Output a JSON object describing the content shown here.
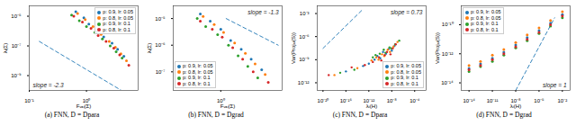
{
  "chart_data": [
    {
      "type": "scatter",
      "caption": "(a) FNN, D = Dpara",
      "xlabel": "Fᵥₐₗ(Σ)",
      "ylabel": "λᵢ(Σ)",
      "log": true,
      "grid": false,
      "legend": "upper right",
      "marker": "circle",
      "xlim": [
        0.1,
        8
      ],
      "ylim": [
        1e-10,
        5e-05
      ],
      "xticks": [
        {
          "value": 0.1,
          "label": "10⁻¹"
        },
        {
          "value": 1,
          "label": "10⁰"
        }
      ],
      "yticks": [
        {
          "value": 1e-09,
          "label": "10⁻⁹"
        },
        {
          "value": 1e-07,
          "label": "10⁻⁷"
        },
        {
          "value": 1e-05,
          "label": "10⁻⁵"
        }
      ],
      "series": [
        {
          "name": "p: 0.9, lr: 0.05",
          "color": "#1f77b4",
          "x": [
            0.65,
            0.9,
            1.1,
            1.5,
            2,
            2.8,
            3.5,
            4.5
          ],
          "values": [
            2e-05,
            8e-06,
            3e-06,
            9e-07,
            4e-07,
            1.5e-07,
            6e-08,
            2e-08
          ]
        },
        {
          "name": "p: 0.8, lr: 0.05",
          "color": "#ff7f0e",
          "x": [
            0.7,
            0.95,
            1.3,
            1.8,
            2.5,
            3.2,
            4,
            5
          ],
          "values": [
            1.5e-05,
            6e-06,
            2e-06,
            6e-07,
            2e-07,
            8e-08,
            3e-08,
            1e-08
          ]
        },
        {
          "name": "p: 0.9, lr: 0.1",
          "color": "#2ca02c",
          "x": [
            0.55,
            0.75,
            1,
            1.4,
            1.9,
            2.6,
            3.3,
            4.2
          ],
          "values": [
            1.2e-05,
            5e-06,
            2e-06,
            8e-07,
            3e-07,
            1e-07,
            4e-08,
            1.5e-08
          ]
        },
        {
          "name": "p: 0.8, lr: 0.1",
          "color": "#d62728",
          "x": [
            0.6,
            0.85,
            1.2,
            1.6,
            2.2,
            3,
            3.8,
            5.5
          ],
          "values": [
            1e-05,
            4e-06,
            1.5e-06,
            5e-07,
            2e-07,
            7e-08,
            2.5e-08,
            5e-09
          ]
        }
      ],
      "annotations": [
        {
          "text": "slope = -2.3",
          "x": [
            0.15,
            4
          ],
          "values": [
            2e-07,
            1.05e-10
          ],
          "color": "#1f77b4",
          "line_style": "dashed"
        }
      ]
    },
    {
      "type": "scatter",
      "caption": "(b) FNN, D = Dgrad",
      "xlabel": "Fᵥₐₗ(Σ)",
      "ylabel": "λᵢ(Σ)",
      "log": true,
      "grid": false,
      "legend": "lower left",
      "marker": "circle",
      "xlim": [
        0.2,
        8
      ],
      "ylim": [
        2e-08,
        3e-05
      ],
      "xticks": [
        {
          "value": 1,
          "label": "10⁰"
        }
      ],
      "yticks": [
        {
          "value": 1e-07,
          "label": "10⁻⁷"
        },
        {
          "value": 1e-06,
          "label": "10⁻⁶"
        },
        {
          "value": 1e-05,
          "label": "10⁻⁵"
        }
      ],
      "series": [
        {
          "name": "p: 0.9, lr: 0.05",
          "color": "#1f77b4",
          "x": [
            0.5,
            0.7,
            1,
            1.4,
            2,
            2.8,
            4
          ],
          "values": [
            1.5e-05,
            8e-06,
            4e-06,
            1.5e-06,
            7e-07,
            3e-07,
            1.2e-07
          ]
        },
        {
          "name": "p: 0.8, lr: 0.05",
          "color": "#ff7f0e",
          "x": [
            0.55,
            0.8,
            1.1,
            1.6,
            2.3,
            3.2,
            4.5
          ],
          "values": [
            1.2e-05,
            6e-06,
            3e-06,
            1.2e-06,
            5e-07,
            2e-07,
            8e-08
          ]
        },
        {
          "name": "p: 0.9, lr: 0.1",
          "color": "#2ca02c",
          "x": [
            0.45,
            0.6,
            0.9,
            1.3,
            1.8,
            2.5,
            3.5
          ],
          "values": [
            1e-05,
            5e-06,
            2.5e-06,
            1e-06,
            4e-07,
            1.6e-07,
            6e-08
          ]
        },
        {
          "name": "p: 0.8, lr: 0.1",
          "color": "#d62728",
          "x": [
            0.5,
            0.75,
            1.05,
            1.5,
            2.1,
            3,
            5
          ],
          "values": [
            8e-06,
            4e-06,
            2e-06,
            8e-07,
            3e-07,
            1e-07,
            4e-08
          ]
        }
      ],
      "annotations": [
        {
          "text": "slope = -1.3",
          "x": [
            1.2,
            7
          ],
          "values": [
            1e-05,
            1e-06
          ],
          "color": "#1f77b4",
          "line_style": "dashed"
        }
      ]
    },
    {
      "type": "scatter",
      "caption": "(c) FNN, D = Dpara",
      "xlabel": "λᵢ(H)",
      "ylabel": "Var(Projᵤᵢ(S))",
      "log": true,
      "grid": false,
      "legend": "lower right",
      "marker": "circle",
      "xlim": [
        1e-21,
        0.01
      ],
      "ylim": [
        1e-13,
        0.01
      ],
      "xticks": [
        {
          "value": 1e-20,
          "label": "10⁻²⁰"
        },
        {
          "value": 1e-16,
          "label": "10⁻¹⁶"
        },
        {
          "value": 1e-12,
          "label": "10⁻¹²"
        },
        {
          "value": 1e-08,
          "label": "10⁻⁸"
        },
        {
          "value": 0.0001,
          "label": "10⁻⁴"
        }
      ],
      "yticks": [
        {
          "value": 1e-12,
          "label": "10⁻¹²"
        },
        {
          "value": 1e-09,
          "label": "10⁻⁹"
        },
        {
          "value": 1e-06,
          "label": "10⁻⁶"
        },
        {
          "value": 0.001,
          "label": "10⁻³"
        }
      ],
      "series": [
        {
          "name": "p: 0.9, lr: 0.05",
          "color": "#1f77b4",
          "x": [
            1e-11,
            3e-11,
            1e-10,
            3e-10,
            1e-09,
            3e-09,
            1e-08,
            1e-12,
            1e-13,
            3e-08,
            1e-16
          ],
          "values": [
            1e-09,
            3e-09,
            1.5e-09,
            1e-08,
            6e-09,
            2.5e-08,
            1.5e-08,
            3e-10,
            1.5e-10,
            6e-08,
            3e-11
          ]
        },
        {
          "name": "p: 0.8, lr: 0.05",
          "color": "#ff7f0e",
          "x": [
            2e-11,
            5e-11,
            2e-10,
            5e-10,
            2e-09,
            5e-09,
            2e-08,
            3e-12,
            1e-14,
            1e-07,
            1e-18
          ],
          "values": [
            2e-09,
            1e-09,
            5e-09,
            3e-09,
            2e-08,
            1e-08,
            5e-08,
            8e-10,
            8e-11,
            2e-07,
            1e-11
          ]
        },
        {
          "name": "p: 0.9, lr: 0.1",
          "color": "#2ca02c",
          "x": [
            1.5e-11,
            8e-11,
            4e-10,
            8e-10,
            4e-09,
            8e-09,
            4e-08,
            5e-12,
            3e-15,
            2e-07,
            1e-17
          ],
          "values": [
            4e-09,
            6e-09,
            2e-08,
            8e-09,
            4e-08,
            3e-08,
            1e-07,
            2e-09,
            5e-11,
            3e-07,
            2e-11
          ]
        },
        {
          "name": "p: 0.8, lr: 0.1",
          "color": "#d62728",
          "x": [
            5e-12,
            6e-11,
            1.5e-10,
            6e-10,
            1.5e-09,
            6e-09,
            1.5e-08,
            2e-13,
            1e-15,
            5e-08,
            1e-19
          ],
          "values": [
            5e-10,
            2e-09,
            8e-10,
            4e-09,
            1e-08,
            5e-09,
            3e-08,
            2e-10,
            1e-10,
            1e-07,
            1e-11
          ]
        }
      ],
      "annotations": [
        {
          "text": "slope = 0.73",
          "x": [
            1e-20,
            1e-13
          ],
          "values": [
            3e-08,
            0.0038
          ],
          "color": "#1f77b4",
          "line_style": "dashed"
        }
      ]
    },
    {
      "type": "scatter",
      "caption": "(d) FNN, D = Dgrad",
      "xlabel": "λᵢ(H)",
      "ylabel": "Var(Projᵤᵢ(S))",
      "log": true,
      "grid": false,
      "legend": "upper left",
      "marker": "circle",
      "xlim": [
        1e-15,
        0.1
      ],
      "ylim": [
        3e-15,
        2e-09
      ],
      "xticks": [
        {
          "value": 1e-14,
          "label": "10⁻¹⁴"
        },
        {
          "value": 1e-11,
          "label": "10⁻¹¹"
        },
        {
          "value": 1e-08,
          "label": "10⁻⁸"
        },
        {
          "value": 1e-05,
          "label": "10⁻⁵"
        },
        {
          "value": 0.01,
          "label": "10⁻²"
        }
      ],
      "yticks": [
        {
          "value": 1e-14,
          "label": "10⁻¹⁴"
        },
        {
          "value": 1e-12,
          "label": "10⁻¹²"
        },
        {
          "value": 1e-10,
          "label": "10⁻¹⁰"
        }
      ],
      "series": [
        {
          "name": "p: 0.9, lr: 0.05",
          "color": "#1f77b4",
          "x": [
            1e-14,
            3e-13,
            1e-11,
            3e-10,
            1e-08,
            3e-07,
            1e-05,
            0.0003,
            0.01
          ],
          "values": [
            1e-13,
            2e-13,
            5e-13,
            1.3e-12,
            4e-12,
            1.3e-11,
            4e-11,
            1.3e-10,
            5e-10
          ]
        },
        {
          "name": "p: 0.8, lr: 0.05",
          "color": "#ff7f0e",
          "x": [
            1e-14,
            3e-13,
            1e-11,
            3e-10,
            1e-08,
            3e-07,
            1e-05,
            0.0003,
            0.01
          ],
          "values": [
            1.6e-13,
            3e-13,
            8e-13,
            2e-12,
            6e-12,
            2e-11,
            6e-11,
            2e-10,
            8e-10
          ]
        },
        {
          "name": "p: 0.9, lr: 0.1",
          "color": "#2ca02c",
          "x": [
            1e-14,
            3e-13,
            1e-11,
            3e-10,
            1e-08,
            3e-07,
            1e-05,
            0.0003,
            0.01
          ],
          "values": [
            6e-14,
            1.3e-13,
            3e-13,
            8e-13,
            2.5e-12,
            8e-12,
            2.5e-11,
            8e-11,
            3e-10
          ]
        },
        {
          "name": "p: 0.8, lr: 0.1",
          "color": "#d62728",
          "x": [
            1e-14,
            3e-13,
            1e-11,
            3e-10,
            1e-08,
            3e-07,
            1e-05,
            0.0003,
            0.01
          ],
          "values": [
            8e-14,
            1.6e-13,
            4e-13,
            1e-12,
            3e-12,
            1e-11,
            3e-11,
            1e-10,
            4e-10
          ]
        }
      ],
      "annotations": [
        {
          "text": "slope = 1",
          "x": [
            1e-08,
            0.001
          ],
          "values": [
            3e-15,
            3e-10
          ],
          "color": "#1f77b4",
          "line_style": "dashed"
        }
      ]
    }
  ]
}
